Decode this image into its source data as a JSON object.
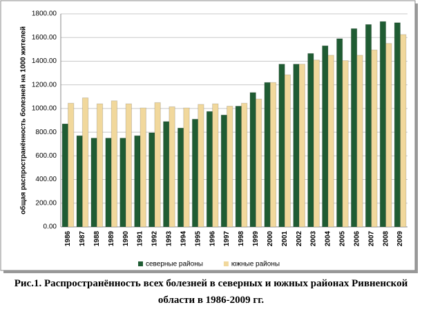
{
  "chart_data": {
    "type": "bar",
    "y_label": "общая распространённость болезней на 1000 жителей",
    "caption": "Рис.1. Распространённость всех болезней в северных и южных районах Ривненской области в 1986-2009 гг.",
    "categories": [
      "1986",
      "1987",
      "1988",
      "1989",
      "1990",
      "1991",
      "1992",
      "1993",
      "1994",
      "1995",
      "1996",
      "1997",
      "1998",
      "1999",
      "2000",
      "2001",
      "2002",
      "2003",
      "2004",
      "2005",
      "2006",
      "2007",
      "2008",
      "2009"
    ],
    "series": [
      {
        "name": "северные районы",
        "color": "#1f5c33",
        "values": [
          870,
          770,
          750,
          750,
          750,
          770,
          795,
          890,
          835,
          910,
          975,
          945,
          1020,
          1135,
          1220,
          1375,
          1375,
          1465,
          1530,
          1590,
          1675,
          1710,
          1735,
          1725
        ]
      },
      {
        "name": "южные районы",
        "color": "#f1d89c",
        "values": [
          1045,
          1090,
          1040,
          1065,
          1040,
          1005,
          1050,
          1015,
          1005,
          1035,
          1040,
          1020,
          1045,
          1080,
          1220,
          1285,
          1375,
          1410,
          1450,
          1405,
          1450,
          1495,
          1550,
          1625
        ]
      }
    ],
    "ylim": [
      0,
      1800
    ],
    "yticks": [
      {
        "value": 0,
        "label": "0.00"
      },
      {
        "value": 200,
        "label": "200.00"
      },
      {
        "value": 400,
        "label": "400.00"
      },
      {
        "value": 600,
        "label": "600.00"
      },
      {
        "value": 800,
        "label": "800.00"
      },
      {
        "value": 1000,
        "label": "1000.00"
      },
      {
        "value": 1200,
        "label": "1200.00"
      },
      {
        "value": 1400,
        "label": "1400.00"
      },
      {
        "value": 1600,
        "label": "1600.00"
      },
      {
        "value": 1800,
        "label": "1800.00"
      }
    ],
    "grid": true,
    "legend": "bottom"
  }
}
